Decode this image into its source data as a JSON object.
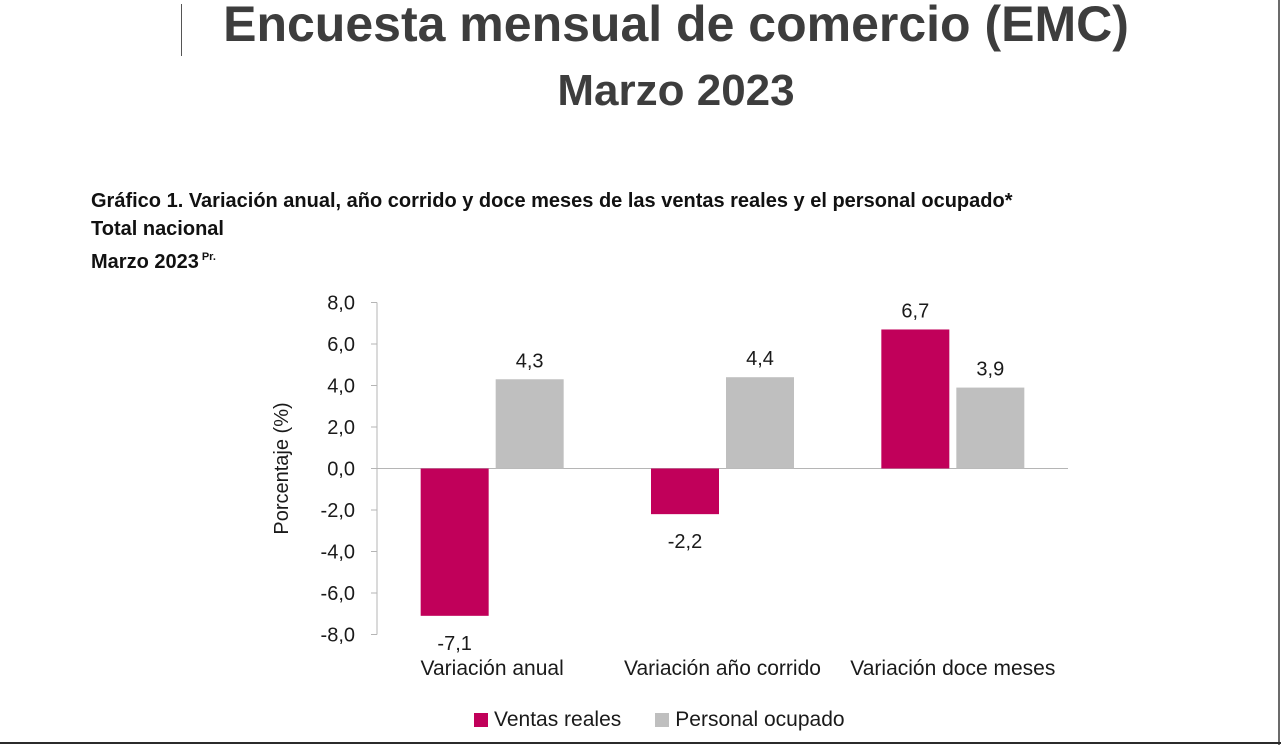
{
  "header": {
    "title": "Encuesta mensual de comercio (EMC)",
    "subtitle": "Marzo 2023"
  },
  "chart_heading": {
    "line1": "Gráfico 1. Variación anual, año corrido y doce meses de las ventas reales y el personal ocupado*",
    "line2": "Total nacional",
    "line3": "Marzo 2023",
    "superscript": "Pr."
  },
  "chart_data": {
    "type": "bar",
    "categories": [
      "Variación anual",
      "Variación año corrido",
      "Variación doce meses"
    ],
    "series": [
      {
        "name": "Ventas reales",
        "color": "#c1005a",
        "values": [
          -7.1,
          -2.2,
          6.7
        ],
        "labels": [
          "-7,1",
          "-2,2",
          "6,7"
        ]
      },
      {
        "name": "Personal ocupado",
        "color": "#bfbfbf",
        "values": [
          4.3,
          4.4,
          3.9
        ],
        "labels": [
          "4,3",
          "4,4",
          "3,9"
        ]
      }
    ],
    "ylabel": "Porcentaje (%)",
    "ylim": [
      -8,
      8
    ],
    "yticks": [
      8,
      6,
      4,
      2,
      0,
      -2,
      -4,
      -6,
      -8
    ],
    "ytick_labels": [
      "8,0",
      "6,0",
      "4,0",
      "2,0",
      "0,0",
      "-2,0",
      "-4,0",
      "-6,0",
      "-8,0"
    ],
    "grid": false,
    "legend_position": "bottom"
  }
}
